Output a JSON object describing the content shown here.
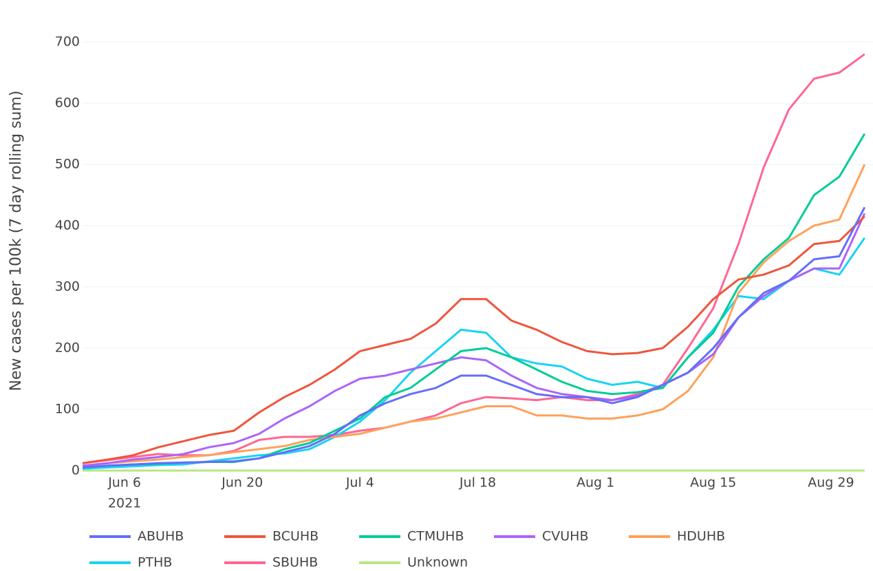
{
  "chart_data": {
    "type": "line",
    "y_label": "New cases per 100k (7 day rolling sum)",
    "x": [
      "2021-06-01",
      "2021-06-04",
      "2021-06-07",
      "2021-06-10",
      "2021-06-13",
      "2021-06-16",
      "2021-06-19",
      "2021-06-22",
      "2021-06-25",
      "2021-06-28",
      "2021-07-01",
      "2021-07-04",
      "2021-07-07",
      "2021-07-10",
      "2021-07-13",
      "2021-07-16",
      "2021-07-19",
      "2021-07-22",
      "2021-07-25",
      "2021-07-28",
      "2021-07-31",
      "2021-08-03",
      "2021-08-06",
      "2021-08-09",
      "2021-08-12",
      "2021-08-15",
      "2021-08-18",
      "2021-08-21",
      "2021-08-24",
      "2021-08-27",
      "2021-08-30",
      "2021-09-02"
    ],
    "series": [
      {
        "name": "ABUHB",
        "color": "#636efa",
        "values": [
          5,
          8,
          10,
          12,
          13,
          14,
          15,
          20,
          30,
          40,
          60,
          90,
          110,
          125,
          135,
          155,
          155,
          140,
          125,
          120,
          120,
          110,
          120,
          140,
          160,
          200,
          250,
          290,
          310,
          345,
          350,
          430
        ]
      },
      {
        "name": "BCUHB",
        "color": "#ef553b",
        "values": [
          12,
          18,
          25,
          38,
          48,
          58,
          65,
          95,
          120,
          140,
          165,
          195,
          205,
          215,
          240,
          280,
          280,
          245,
          230,
          210,
          195,
          190,
          192,
          200,
          235,
          280,
          312,
          320,
          335,
          370,
          375,
          415
        ]
      },
      {
        "name": "CTMUHB",
        "color": "#00cc96",
        "values": [
          5,
          8,
          10,
          11,
          13,
          14,
          14,
          20,
          35,
          45,
          65,
          85,
          120,
          135,
          165,
          195,
          200,
          185,
          165,
          145,
          130,
          125,
          128,
          135,
          185,
          225,
          300,
          345,
          380,
          450,
          480,
          550
        ]
      },
      {
        "name": "CVUHB",
        "color": "#ab63fa",
        "values": [
          8,
          12,
          18,
          22,
          27,
          38,
          45,
          60,
          85,
          105,
          130,
          150,
          155,
          165,
          175,
          185,
          180,
          155,
          135,
          125,
          120,
          115,
          122,
          140,
          160,
          190,
          250,
          285,
          310,
          330,
          330,
          420
        ]
      },
      {
        "name": "HDUHB",
        "color": "#ffa15a",
        "values": [
          8,
          12,
          15,
          18,
          22,
          25,
          30,
          35,
          40,
          50,
          55,
          60,
          70,
          80,
          85,
          95,
          105,
          105,
          90,
          90,
          85,
          85,
          90,
          100,
          130,
          185,
          290,
          340,
          375,
          400,
          410,
          500
        ]
      },
      {
        "name": "PTHB",
        "color": "#19d3f3",
        "values": [
          3,
          5,
          7,
          9,
          10,
          15,
          20,
          25,
          28,
          35,
          55,
          80,
          115,
          160,
          195,
          230,
          225,
          185,
          175,
          170,
          150,
          140,
          145,
          135,
          185,
          230,
          285,
          280,
          310,
          330,
          320,
          380
        ]
      },
      {
        "name": "SBUHB",
        "color": "#ff6692",
        "values": [
          12,
          17,
          22,
          27,
          25,
          25,
          32,
          50,
          55,
          55,
          58,
          65,
          70,
          80,
          90,
          110,
          120,
          118,
          115,
          120,
          115,
          115,
          125,
          140,
          200,
          265,
          370,
          495,
          590,
          640,
          650,
          680
        ]
      },
      {
        "name": "Unknown",
        "color": "#b6e880",
        "values": [
          0,
          0,
          0,
          0,
          0,
          0,
          0,
          0,
          0,
          0,
          0,
          0,
          0,
          0,
          0,
          0,
          0,
          0,
          0,
          0,
          0,
          0,
          0,
          0,
          0,
          0,
          0,
          0,
          0,
          0,
          0,
          0
        ]
      }
    ],
    "xlim": [
      "2021-06-01",
      "2021-09-03"
    ],
    "xticks": [
      {
        "value": "2021-06-06",
        "label": "Jun 6"
      },
      {
        "value": "2021-06-20",
        "label": "Jun 20"
      },
      {
        "value": "2021-07-04",
        "label": "Jul 4"
      },
      {
        "value": "2021-07-18",
        "label": "Jul 18"
      },
      {
        "value": "2021-08-01",
        "label": "Aug 1"
      },
      {
        "value": "2021-08-15",
        "label": "Aug 15"
      },
      {
        "value": "2021-08-29",
        "label": "Aug 29"
      }
    ],
    "x_year_label": "2021",
    "ylim": [
      0,
      700
    ],
    "yticks": [
      0,
      100,
      200,
      300,
      400,
      500,
      600,
      700
    ],
    "grid": true,
    "legend": "bottom"
  }
}
